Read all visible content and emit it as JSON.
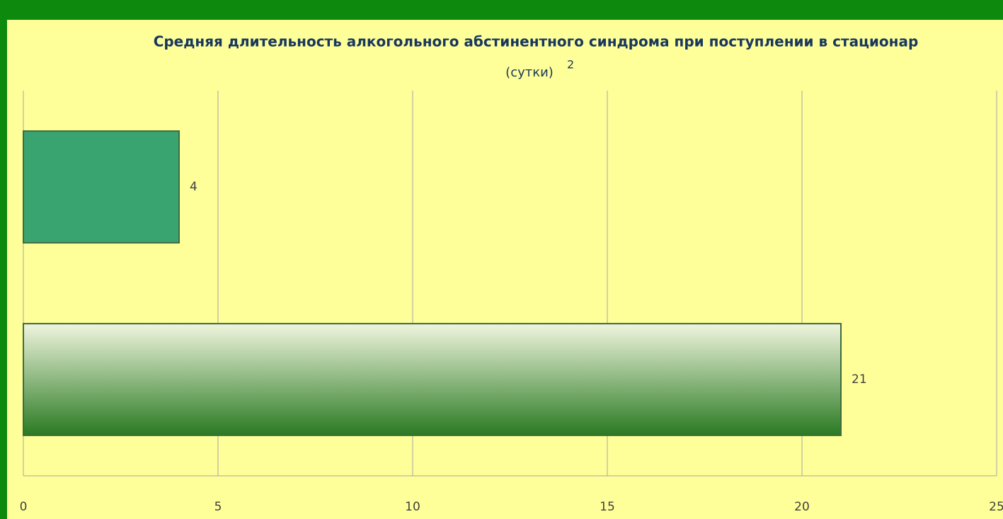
{
  "chart_data": {
    "type": "hbar",
    "title": "Средняя длительность алкогольного абстинентного синдрома при поступлении в стационар",
    "subtitle": "(сутки)",
    "subtitle_superscript": "2",
    "categories": [
      null,
      null
    ],
    "values": [
      4,
      21
    ],
    "colors": [
      [
        "#3aa471",
        "#3aa471"
      ],
      [
        "#f0f5de",
        "#2a7a22"
      ]
    ],
    "xlim": [
      0,
      25
    ],
    "xticks": [
      0,
      5,
      10,
      15,
      20,
      25
    ],
    "grid": true
  }
}
